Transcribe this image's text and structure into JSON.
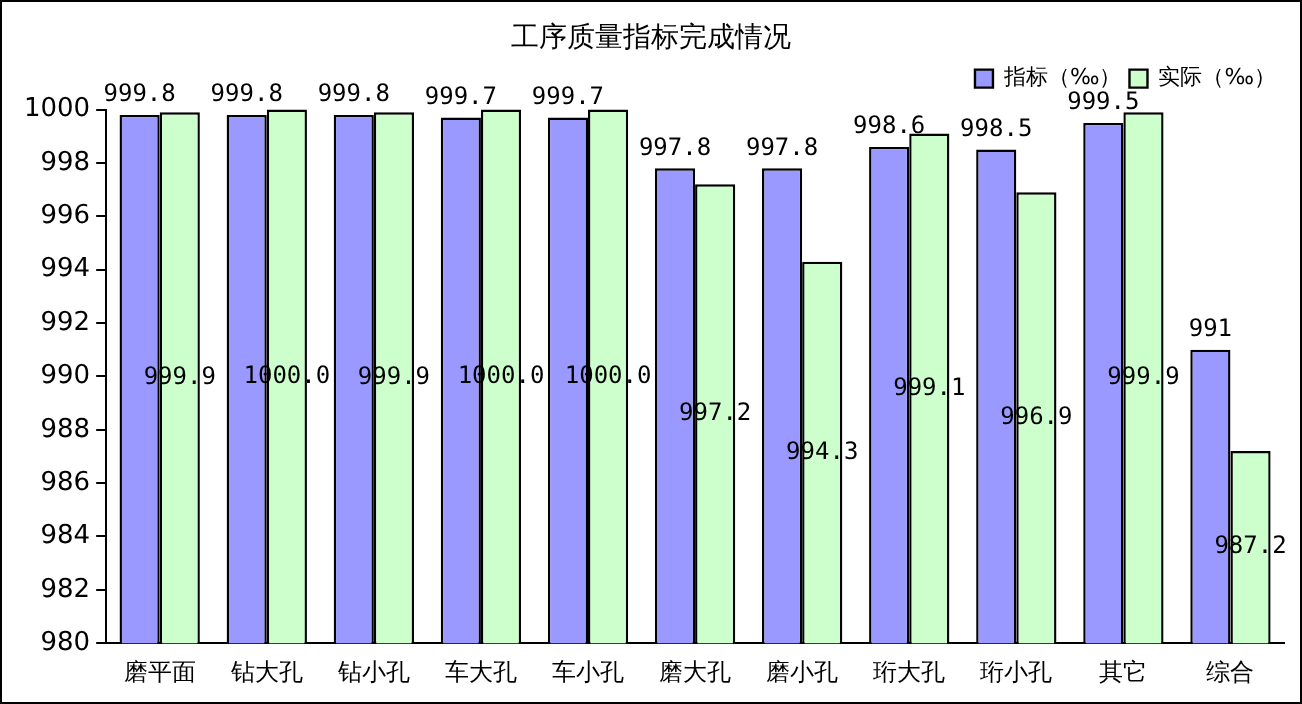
{
  "chart_data": {
    "type": "bar",
    "title": "工序质量指标完成情况",
    "categories": [
      "磨平面",
      "钻大孔",
      "钻小孔",
      "车大孔",
      "车小孔",
      "磨大孔",
      "磨小孔",
      "珩大孔",
      "珩小孔",
      "其它",
      "综合"
    ],
    "series": [
      {
        "name": "指标（‰）",
        "color": "#9999ff",
        "values": [
          999.8,
          999.8,
          999.8,
          999.7,
          999.7,
          997.8,
          997.8,
          998.6,
          998.5,
          999.5,
          991
        ],
        "value_labels": [
          "999.8",
          "999.8",
          "999.8",
          "999.7",
          "999.7",
          "997.8",
          "997.8",
          "998.6",
          "998.5",
          "999.5",
          "991"
        ]
      },
      {
        "name": "实际（‰）",
        "color": "#ccffcc",
        "values": [
          999.9,
          1000.0,
          999.9,
          1000.0,
          1000.0,
          997.2,
          994.3,
          999.1,
          996.9,
          999.9,
          987.2
        ],
        "value_labels": [
          "999.9",
          "1000.0",
          "999.9",
          "1000.0",
          "1000.0",
          "997.2",
          "994.3",
          "999.1",
          "996.9",
          "999.9",
          "987.2"
        ]
      }
    ],
    "ylim": [
      980,
      1000
    ],
    "yticks": [
      980,
      982,
      984,
      986,
      988,
      990,
      992,
      994,
      996,
      998,
      1000
    ],
    "grid": false,
    "legend": "top right"
  }
}
